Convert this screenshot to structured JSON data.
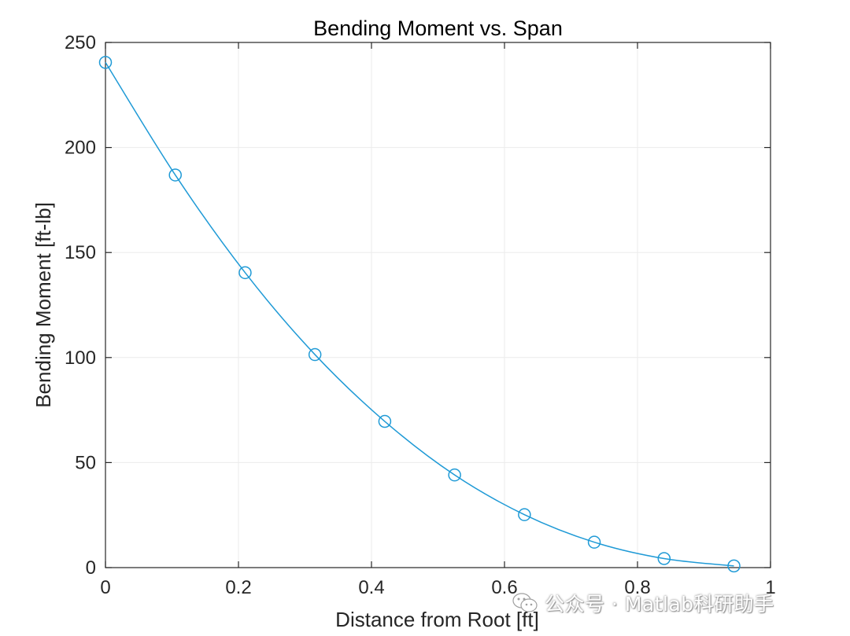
{
  "chart_data": {
    "type": "line",
    "title": "Bending Moment vs. Span",
    "xlabel": "Distance from Root [ft]",
    "ylabel": "Bending Moment [ft-lb]",
    "xlim": [
      0,
      1
    ],
    "ylim": [
      0,
      250
    ],
    "xticks": [
      0,
      0.2,
      0.4,
      0.6,
      0.8,
      1
    ],
    "xtick_labels": [
      "0",
      "0.2",
      "0.4",
      "0.6",
      "0.8",
      "1"
    ],
    "yticks": [
      0,
      50,
      100,
      150,
      200,
      250
    ],
    "ytick_labels": [
      "0",
      "50",
      "100",
      "150",
      "200",
      "250"
    ],
    "grid": true,
    "marker": "circle",
    "series": [
      {
        "color": "#1f9ad6",
        "x": [
          0,
          0.105,
          0.21,
          0.315,
          0.42,
          0.525,
          0.63,
          0.735,
          0.84,
          0.945
        ],
        "y": [
          240.5,
          186.9,
          140.4,
          101.4,
          69.6,
          44.1,
          25.2,
          12.1,
          4.3,
          0.8
        ]
      }
    ]
  },
  "watermark": {
    "text": "公众号 · Matlab科研助手",
    "icon": "wechat-icon"
  }
}
